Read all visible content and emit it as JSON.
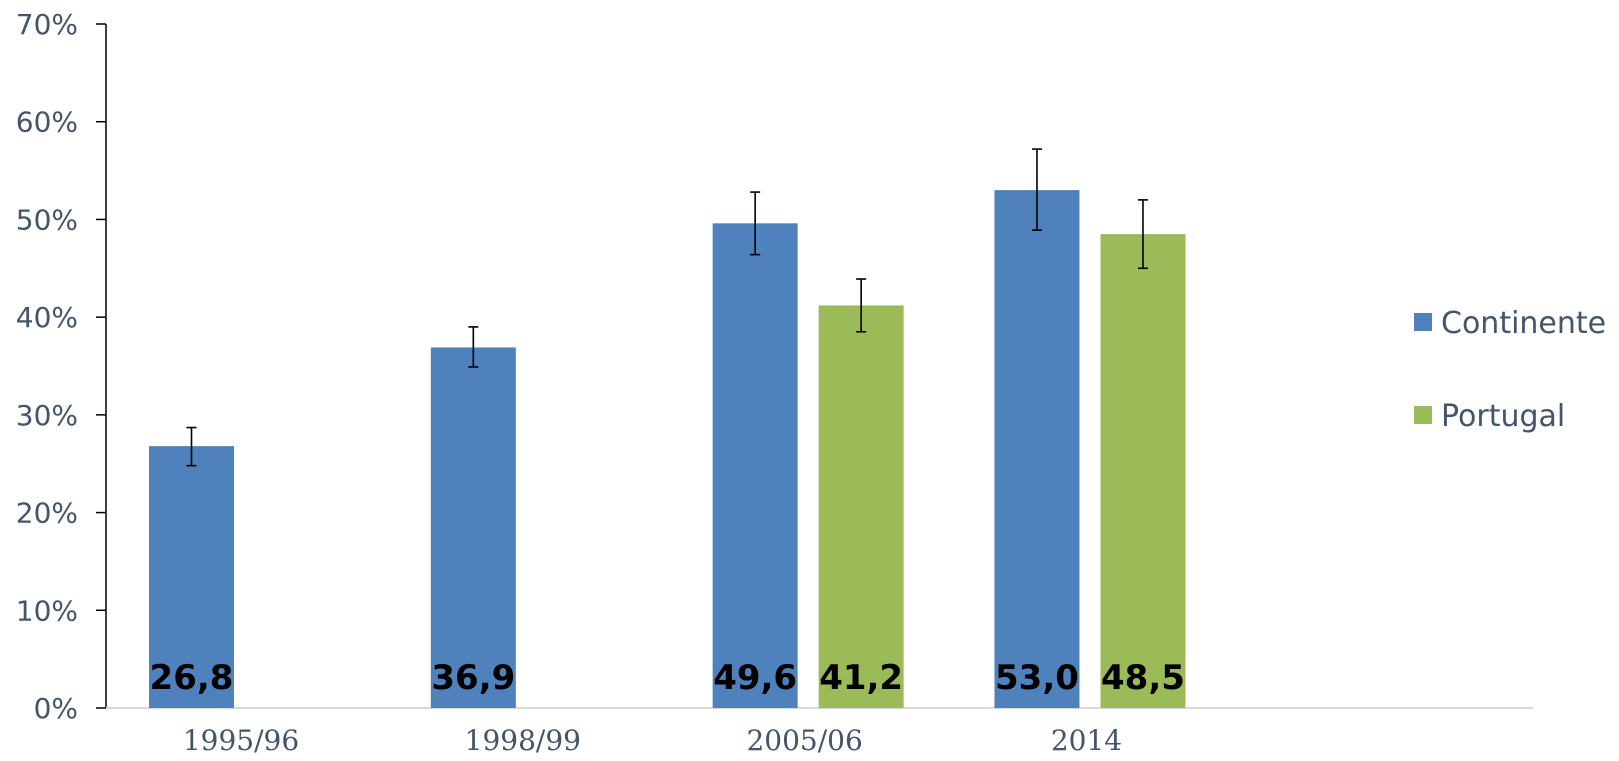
{
  "chart_data": {
    "type": "bar",
    "categories": [
      "1995/96",
      "1998/99",
      "2005/06",
      "2014"
    ],
    "y_ticks": [
      "0%",
      "10%",
      "20%",
      "30%",
      "40%",
      "50%",
      "60%",
      "70%"
    ],
    "ylim": [
      0,
      70
    ],
    "grid": false,
    "legend_position": "right",
    "series": [
      {
        "name": "Continente",
        "color": "#4f81bd",
        "values": [
          26.8,
          36.9,
          49.6,
          53.0
        ],
        "labels": [
          "26,8",
          "36,9",
          "49,6",
          "53,0"
        ],
        "error_low": [
          24.8,
          34.9,
          46.4,
          48.9
        ],
        "error_high": [
          28.7,
          39.0,
          52.8,
          57.2
        ]
      },
      {
        "name": "Portugal",
        "color": "#9bbb59",
        "values": [
          null,
          null,
          41.2,
          48.5
        ],
        "labels": [
          null,
          null,
          "41,2",
          "48,5"
        ],
        "error_low": [
          null,
          null,
          38.5,
          45.0
        ],
        "error_high": [
          null,
          null,
          43.9,
          52.0
        ]
      }
    ]
  }
}
